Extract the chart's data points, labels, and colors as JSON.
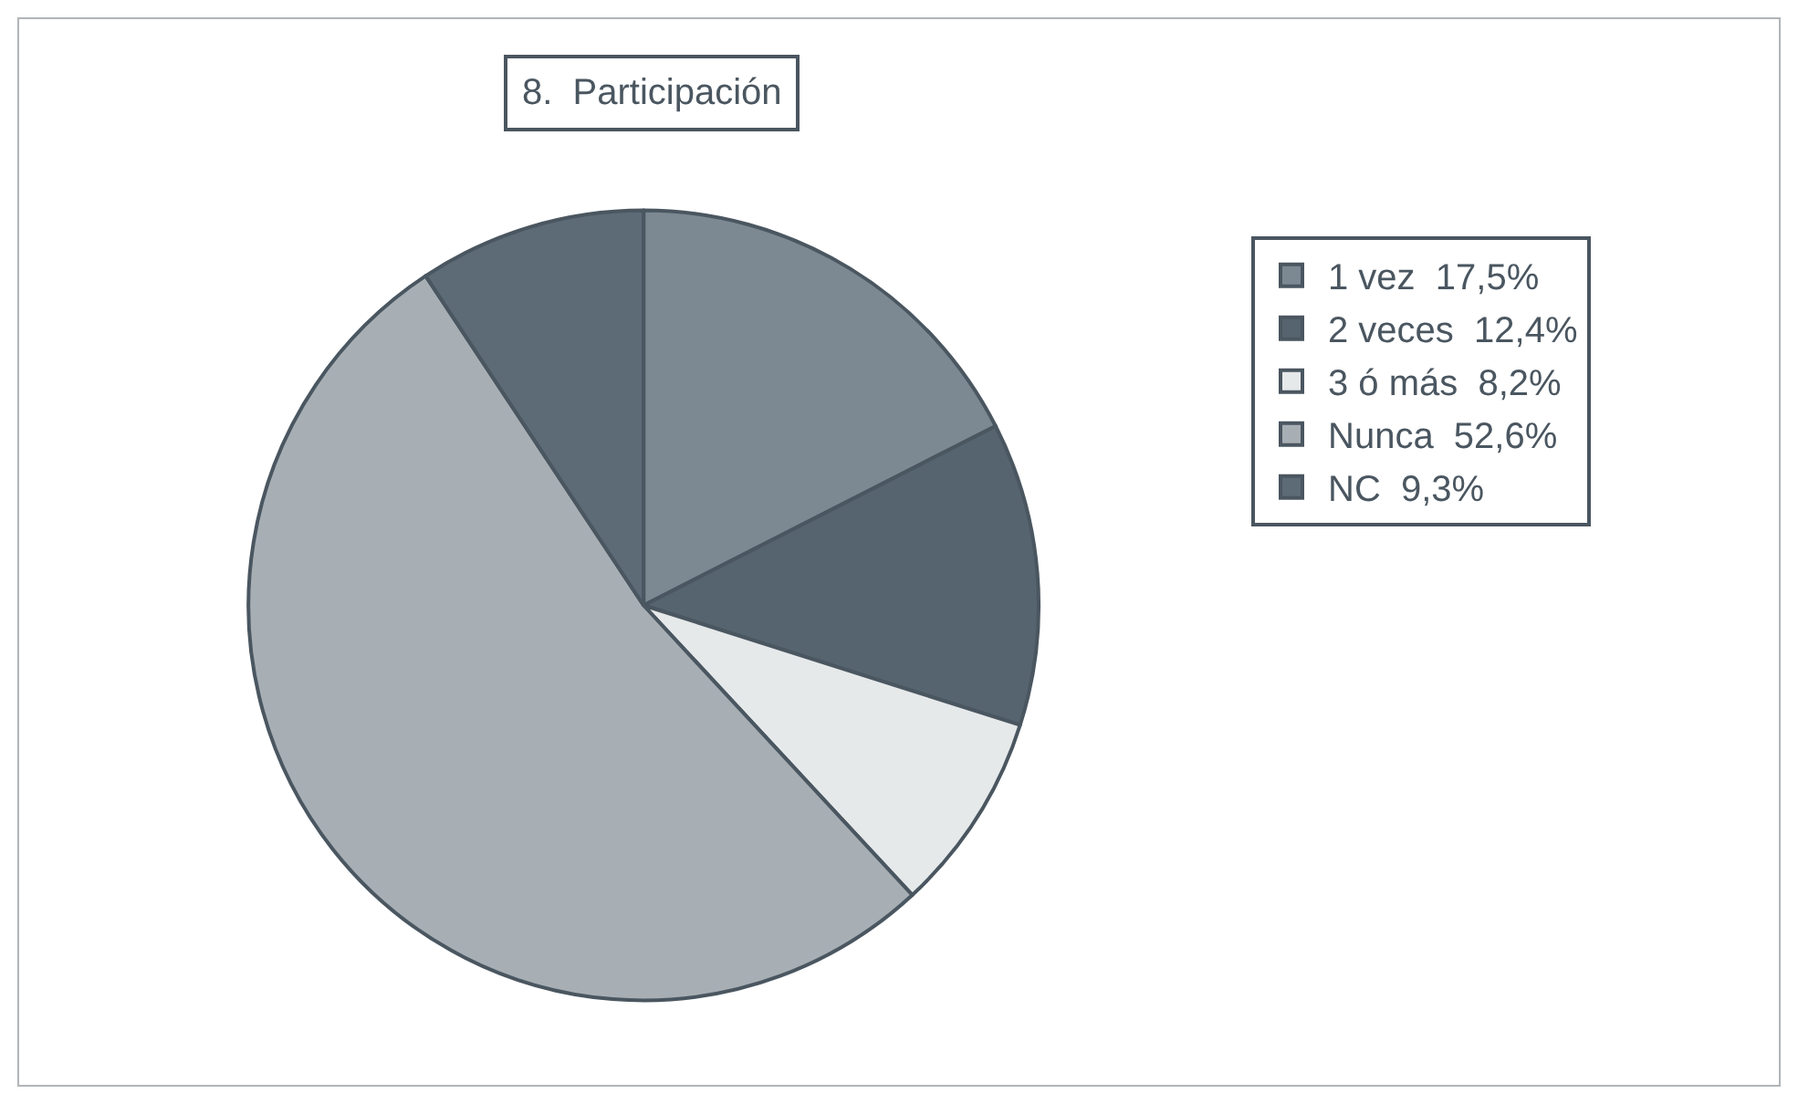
{
  "chart_data": {
    "type": "pie",
    "title": "8.  Participación",
    "categories": [
      "1 vez  17,5%",
      "2 veces  12,4%",
      "3 ó más  8,2%",
      "Nunca  52,6%",
      "NC  9,3%"
    ],
    "values": [
      17.5,
      12.4,
      8.2,
      52.6,
      9.3
    ],
    "colors": [
      "#7c8993",
      "#56646f",
      "#e6e9ea",
      "#a7afb5",
      "#5d6b77"
    ],
    "legend": "right"
  }
}
